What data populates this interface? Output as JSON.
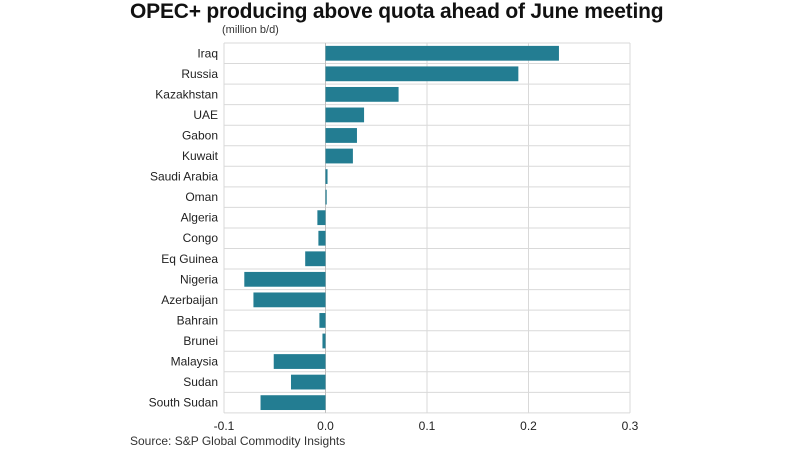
{
  "chart_data": {
    "type": "bar",
    "orientation": "horizontal",
    "title": "OPEC+ producing above quota ahead of June meeting",
    "subtitle": "(million b/d)",
    "source": "Source: S&P Global Commodity Insights",
    "categories": [
      "Iraq",
      "Russia",
      "Kazakhstan",
      "UAE",
      "Gabon",
      "Kuwait",
      "Saudi Arabia",
      "Oman",
      "Algeria",
      "Congo",
      "Eq Guinea",
      "Nigeria",
      "Azerbaijan",
      "Bahrain",
      "Brunei",
      "Malaysia",
      "Sudan",
      "South Sudan"
    ],
    "values": [
      0.23,
      0.19,
      0.072,
      0.038,
      0.031,
      0.027,
      0.002,
      0.001,
      -0.008,
      -0.007,
      -0.02,
      -0.08,
      -0.071,
      -0.006,
      -0.003,
      -0.051,
      -0.034,
      -0.064
    ],
    "xlim": [
      -0.1,
      0.3
    ],
    "xticks": [
      -0.1,
      0.0,
      0.1,
      0.2,
      0.3
    ],
    "xtick_labels": [
      "-0.1",
      "0.0",
      "0.1",
      "0.2",
      "0.3"
    ],
    "xlabel": "",
    "ylabel": "",
    "grid": true,
    "colors": {
      "bar": "#237d92",
      "grid": "#d9d9d9",
      "zero_line": "#bfbfbf"
    }
  }
}
